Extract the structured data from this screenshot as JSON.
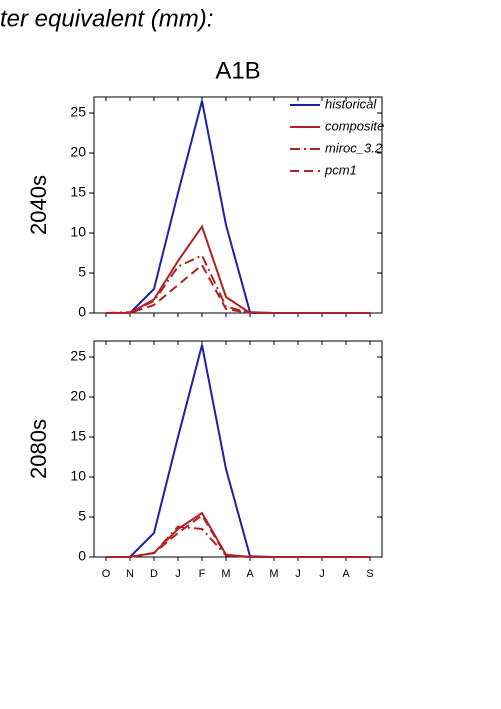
{
  "title": "ter equivalent (mm):",
  "subtitle": "A1B",
  "chart_data": [
    {
      "type": "line",
      "ylabel": "2040s",
      "ylim": [
        0,
        27
      ],
      "yticks": [
        0,
        5,
        10,
        15,
        20,
        25
      ],
      "legend": "upper right",
      "series": [
        {
          "name": "historical",
          "color": "#1f1fa8",
          "dash": "solid",
          "values": [
            0,
            0,
            3,
            15,
            26.5,
            11,
            0.1,
            0,
            0,
            0,
            0,
            0
          ]
        },
        {
          "name": "composite",
          "color": "#b22222",
          "dash": "solid",
          "values": [
            0,
            0,
            1.7,
            6.5,
            10.8,
            2,
            0,
            0,
            0,
            0,
            0,
            0
          ]
        },
        {
          "name": "miroc_3.2",
          "color": "#b22222",
          "dash": "dashdot",
          "values": [
            0,
            0.1,
            1.5,
            5.8,
            7.2,
            0.8,
            0,
            0,
            0,
            0,
            0,
            0
          ]
        },
        {
          "name": "pcm1",
          "color": "#b22222",
          "dash": "dashed",
          "values": [
            0,
            0,
            1,
            3.5,
            6,
            0.5,
            0,
            0,
            0,
            0,
            0,
            0
          ]
        }
      ]
    },
    {
      "type": "line",
      "ylabel": "2080s",
      "ylim": [
        0,
        27
      ],
      "yticks": [
        0,
        5,
        10,
        15,
        20,
        25
      ],
      "categories": [
        "O",
        "N",
        "D",
        "J",
        "F",
        "M",
        "A",
        "M",
        "J",
        "J",
        "A",
        "S"
      ],
      "series": [
        {
          "color": "#1f1fa8",
          "dash": "solid",
          "values": [
            0,
            0,
            3,
            15,
            26.5,
            11,
            0.1,
            0,
            0,
            0,
            0,
            0
          ]
        },
        {
          "color": "#b22222",
          "dash": "solid",
          "values": [
            0,
            0,
            0.5,
            3.5,
            5.5,
            0.3,
            0,
            0,
            0,
            0,
            0,
            0
          ]
        },
        {
          "color": "#b22222",
          "dash": "dashdot",
          "values": [
            0,
            0,
            0.5,
            3.8,
            3.5,
            0.2,
            0,
            0,
            0,
            0,
            0,
            0
          ]
        },
        {
          "color": "#b22222",
          "dash": "dashed",
          "values": [
            0,
            0,
            0.5,
            3,
            5.2,
            0.2,
            0,
            0,
            0,
            0,
            0,
            0
          ]
        }
      ]
    }
  ]
}
